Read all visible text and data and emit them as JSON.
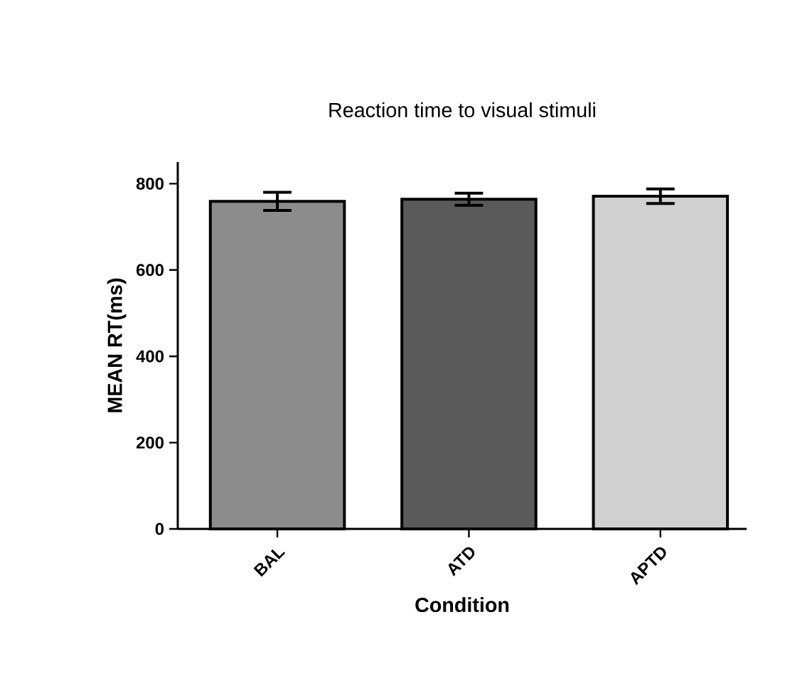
{
  "chart_data": {
    "type": "bar",
    "title": "Reaction time to visual stimuli",
    "xlabel": "Condition",
    "ylabel": "MEAN RT(ms)",
    "categories": [
      "BAL",
      "ATD",
      "APTD"
    ],
    "values": [
      759,
      764,
      771
    ],
    "errors": [
      21,
      14,
      17
    ],
    "colors": [
      "#8c8c8c",
      "#5a5a5a",
      "#d0d0d0"
    ],
    "ylim": [
      0,
      850
    ],
    "yticks": [
      0,
      200,
      400,
      600,
      800
    ],
    "grid": false
  }
}
